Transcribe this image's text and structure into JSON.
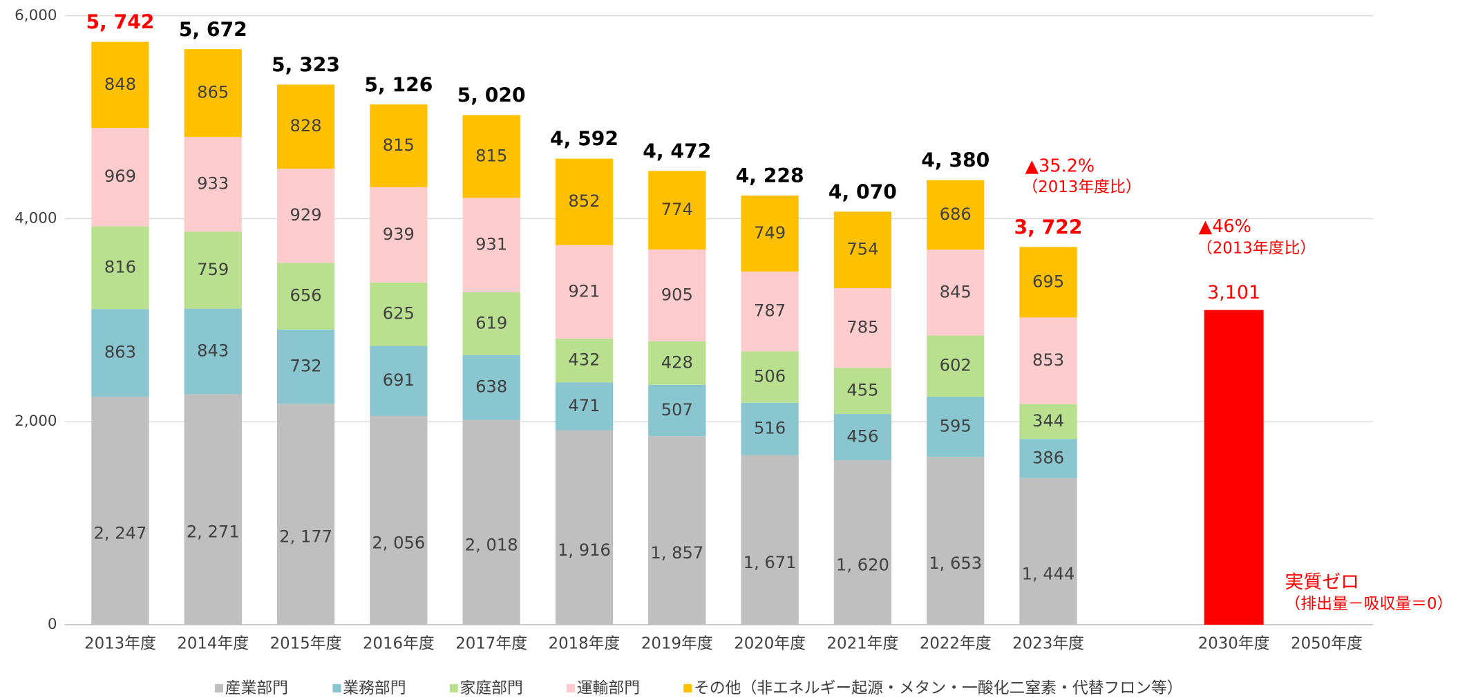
{
  "chart_data": {
    "type": "stacked_bar",
    "categories": [
      "2013年度",
      "2014年度",
      "2015年度",
      "2016年度",
      "2017年度",
      "2018年度",
      "2019年度",
      "2020年度",
      "2021年度",
      "2022年度",
      "2023年度",
      null,
      "2030年度",
      "2050年度"
    ],
    "series": [
      {
        "name": "産業部門",
        "color": "#bfbfbf",
        "values": [
          2247,
          2271,
          2177,
          2056,
          2018,
          1916,
          1857,
          1671,
          1620,
          1653,
          1444,
          null,
          null,
          null
        ],
        "value_labels": [
          "2, 247",
          "2, 271",
          "2, 177",
          "2, 056",
          "2, 018",
          "1, 916",
          "1, 857",
          "1, 671",
          "1, 620",
          "1, 653",
          "1, 444",
          null,
          null,
          null
        ]
      },
      {
        "name": "業務部門",
        "color": "#8ac6cf",
        "values": [
          863,
          843,
          732,
          691,
          638,
          471,
          507,
          516,
          456,
          595,
          386,
          null,
          null,
          null
        ]
      },
      {
        "name": "家庭部門",
        "color": "#b8e08e",
        "values": [
          816,
          759,
          656,
          625,
          619,
          432,
          428,
          506,
          455,
          602,
          344,
          null,
          null,
          null
        ]
      },
      {
        "name": "運輸部門",
        "color": "#ffccce",
        "values": [
          969,
          933,
          929,
          939,
          931,
          921,
          905,
          787,
          785,
          845,
          853,
          null,
          null,
          null
        ]
      },
      {
        "name": "その他（非エネルギー起源・メタン・一酸化二窒素・代替フロン等）",
        "color": "#ffc000",
        "values": [
          848,
          865,
          828,
          815,
          815,
          852,
          774,
          749,
          754,
          686,
          695,
          null,
          null,
          null
        ]
      }
    ],
    "totals": {
      "values": [
        5742,
        5672,
        5323,
        5126,
        5020,
        4592,
        4472,
        4228,
        4070,
        4380,
        3722,
        null,
        null,
        null
      ],
      "value_labels": [
        "5, 742",
        "5, 672",
        "5, 323",
        "5, 126",
        "5, 020",
        "4, 592",
        "4, 472",
        "4, 228",
        "4, 070",
        "4, 380",
        "3, 722",
        null,
        null,
        null
      ],
      "colors": [
        "#ff0000",
        "#000000",
        "#000000",
        "#000000",
        "#000000",
        "#000000",
        "#000000",
        "#000000",
        "#000000",
        "#000000",
        "#ff0000",
        null,
        null,
        null
      ]
    },
    "target": {
      "color": "#ff0000",
      "values": [
        null,
        null,
        null,
        null,
        null,
        null,
        null,
        null,
        null,
        null,
        null,
        null,
        3101,
        null
      ],
      "value_labels": [
        null,
        null,
        null,
        null,
        null,
        null,
        null,
        null,
        null,
        null,
        null,
        null,
        "3,101",
        null
      ]
    },
    "annotations": [
      "▲35.2%",
      "（2013年度比）",
      "▲46%",
      "（2013年度比）",
      "実質ゼロ",
      "（排出量－吸収量＝0）"
    ],
    "annotation_color": "#ff0000",
    "ylim": [
      0,
      6000
    ],
    "yticks": [
      0,
      {
        "value": 2000,
        "label": "2,000"
      },
      {
        "value": 4000,
        "label": "4,000"
      },
      {
        "value": 6000,
        "label": "6,000"
      }
    ],
    "grid": true,
    "legend": "bottom"
  }
}
